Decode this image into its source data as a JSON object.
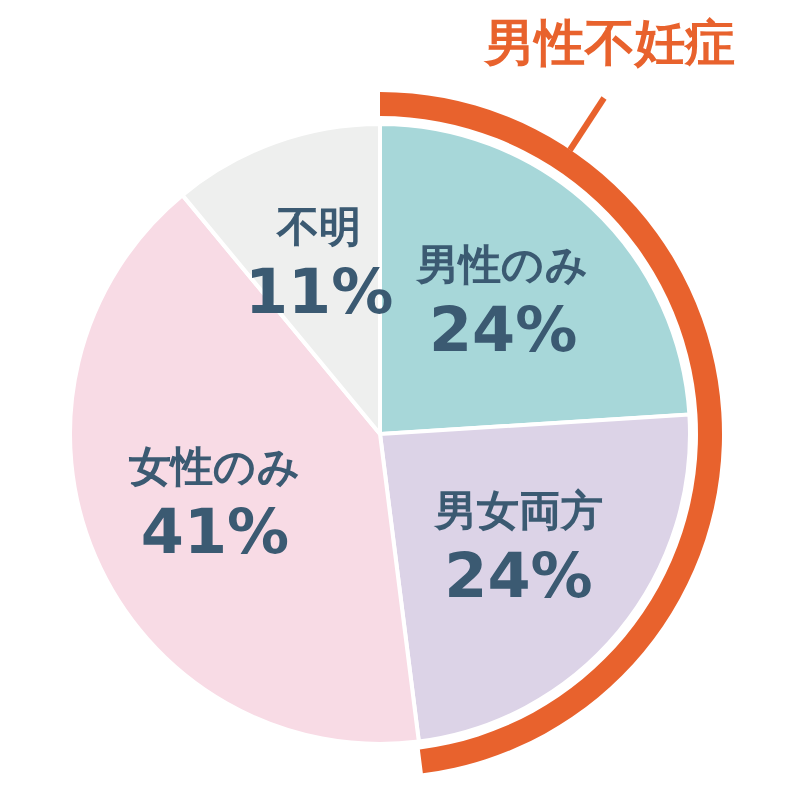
{
  "chart_data": {
    "type": "pie",
    "categories": [
      "男性のみ",
      "男女両方",
      "女性のみ",
      "不明"
    ],
    "values": [
      24,
      24,
      41,
      11
    ],
    "value_labels": [
      "24%",
      "24%",
      "41%",
      "11%"
    ],
    "colors": [
      "#a7d7d9",
      "#dcd3e7",
      "#f8dbe5",
      "#eeefee"
    ],
    "annotations": [
      "男性不妊症"
    ]
  }
}
